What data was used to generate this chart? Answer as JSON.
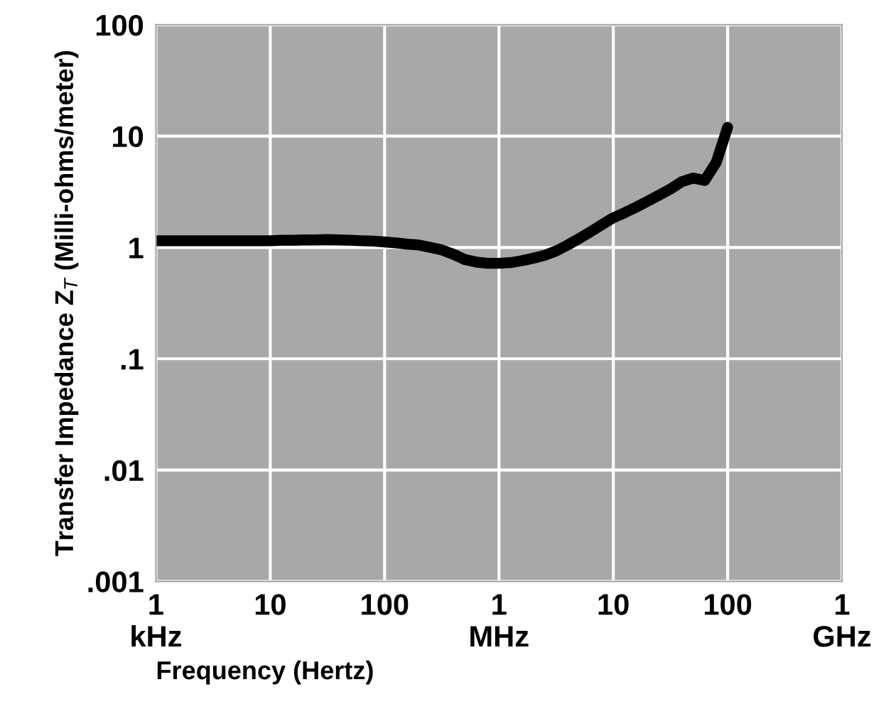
{
  "chart_data": {
    "type": "line",
    "xlabel": "Frequency (Hertz)",
    "ylabel": "Transfer Impedance Z$_{T}$ (Milli-ohms/meter)",
    "log": "y",
    "grid": true,
    "ylim": [
      0.001,
      100
    ],
    "yticks": [
      {
        "value": 0.001,
        "label": ".001"
      },
      {
        "value": 0.01,
        "label": ".01"
      },
      {
        "value": 0.1,
        "label": ".1"
      },
      {
        "value": 1,
        "label": "1"
      },
      {
        "value": 10,
        "label": "10"
      },
      {
        "value": 100,
        "label": "100"
      }
    ],
    "categories": [
      "1\nkHz",
      null,
      null,
      null,
      null,
      null,
      null,
      null,
      null,
      null,
      "10",
      null,
      null,
      null,
      null,
      null,
      null,
      null,
      null,
      null,
      "100",
      null,
      null,
      null,
      null,
      null,
      null,
      null,
      null,
      null,
      "1\nMHz",
      null,
      null,
      null,
      null,
      null,
      null,
      null,
      null,
      null,
      "10",
      null,
      null,
      null,
      null,
      null,
      null,
      null,
      null,
      null,
      "100",
      null,
      null,
      null,
      null,
      null,
      null,
      null,
      null,
      null,
      "1\nGHz"
    ],
    "series": [
      {
        "color": "#000000",
        "values": [
          1.15,
          1.15,
          1.15,
          1.15,
          1.15,
          1.15,
          1.15,
          1.15,
          1.15,
          1.15,
          1.15,
          1.16,
          1.16,
          1.17,
          1.17,
          1.18,
          1.17,
          1.16,
          1.15,
          1.14,
          1.12,
          1.1,
          1.07,
          1.05,
          1.0,
          0.95,
          0.87,
          0.78,
          0.74,
          0.72,
          0.72,
          0.73,
          0.76,
          0.8,
          0.85,
          0.93,
          1.05,
          1.2,
          1.38,
          1.6,
          1.85,
          2.05,
          2.3,
          2.6,
          2.95,
          3.35,
          3.9,
          4.2,
          4.0,
          5.8,
          12,
          null,
          null,
          null,
          null,
          null,
          null,
          null,
          null,
          null,
          null
        ]
      }
    ]
  }
}
